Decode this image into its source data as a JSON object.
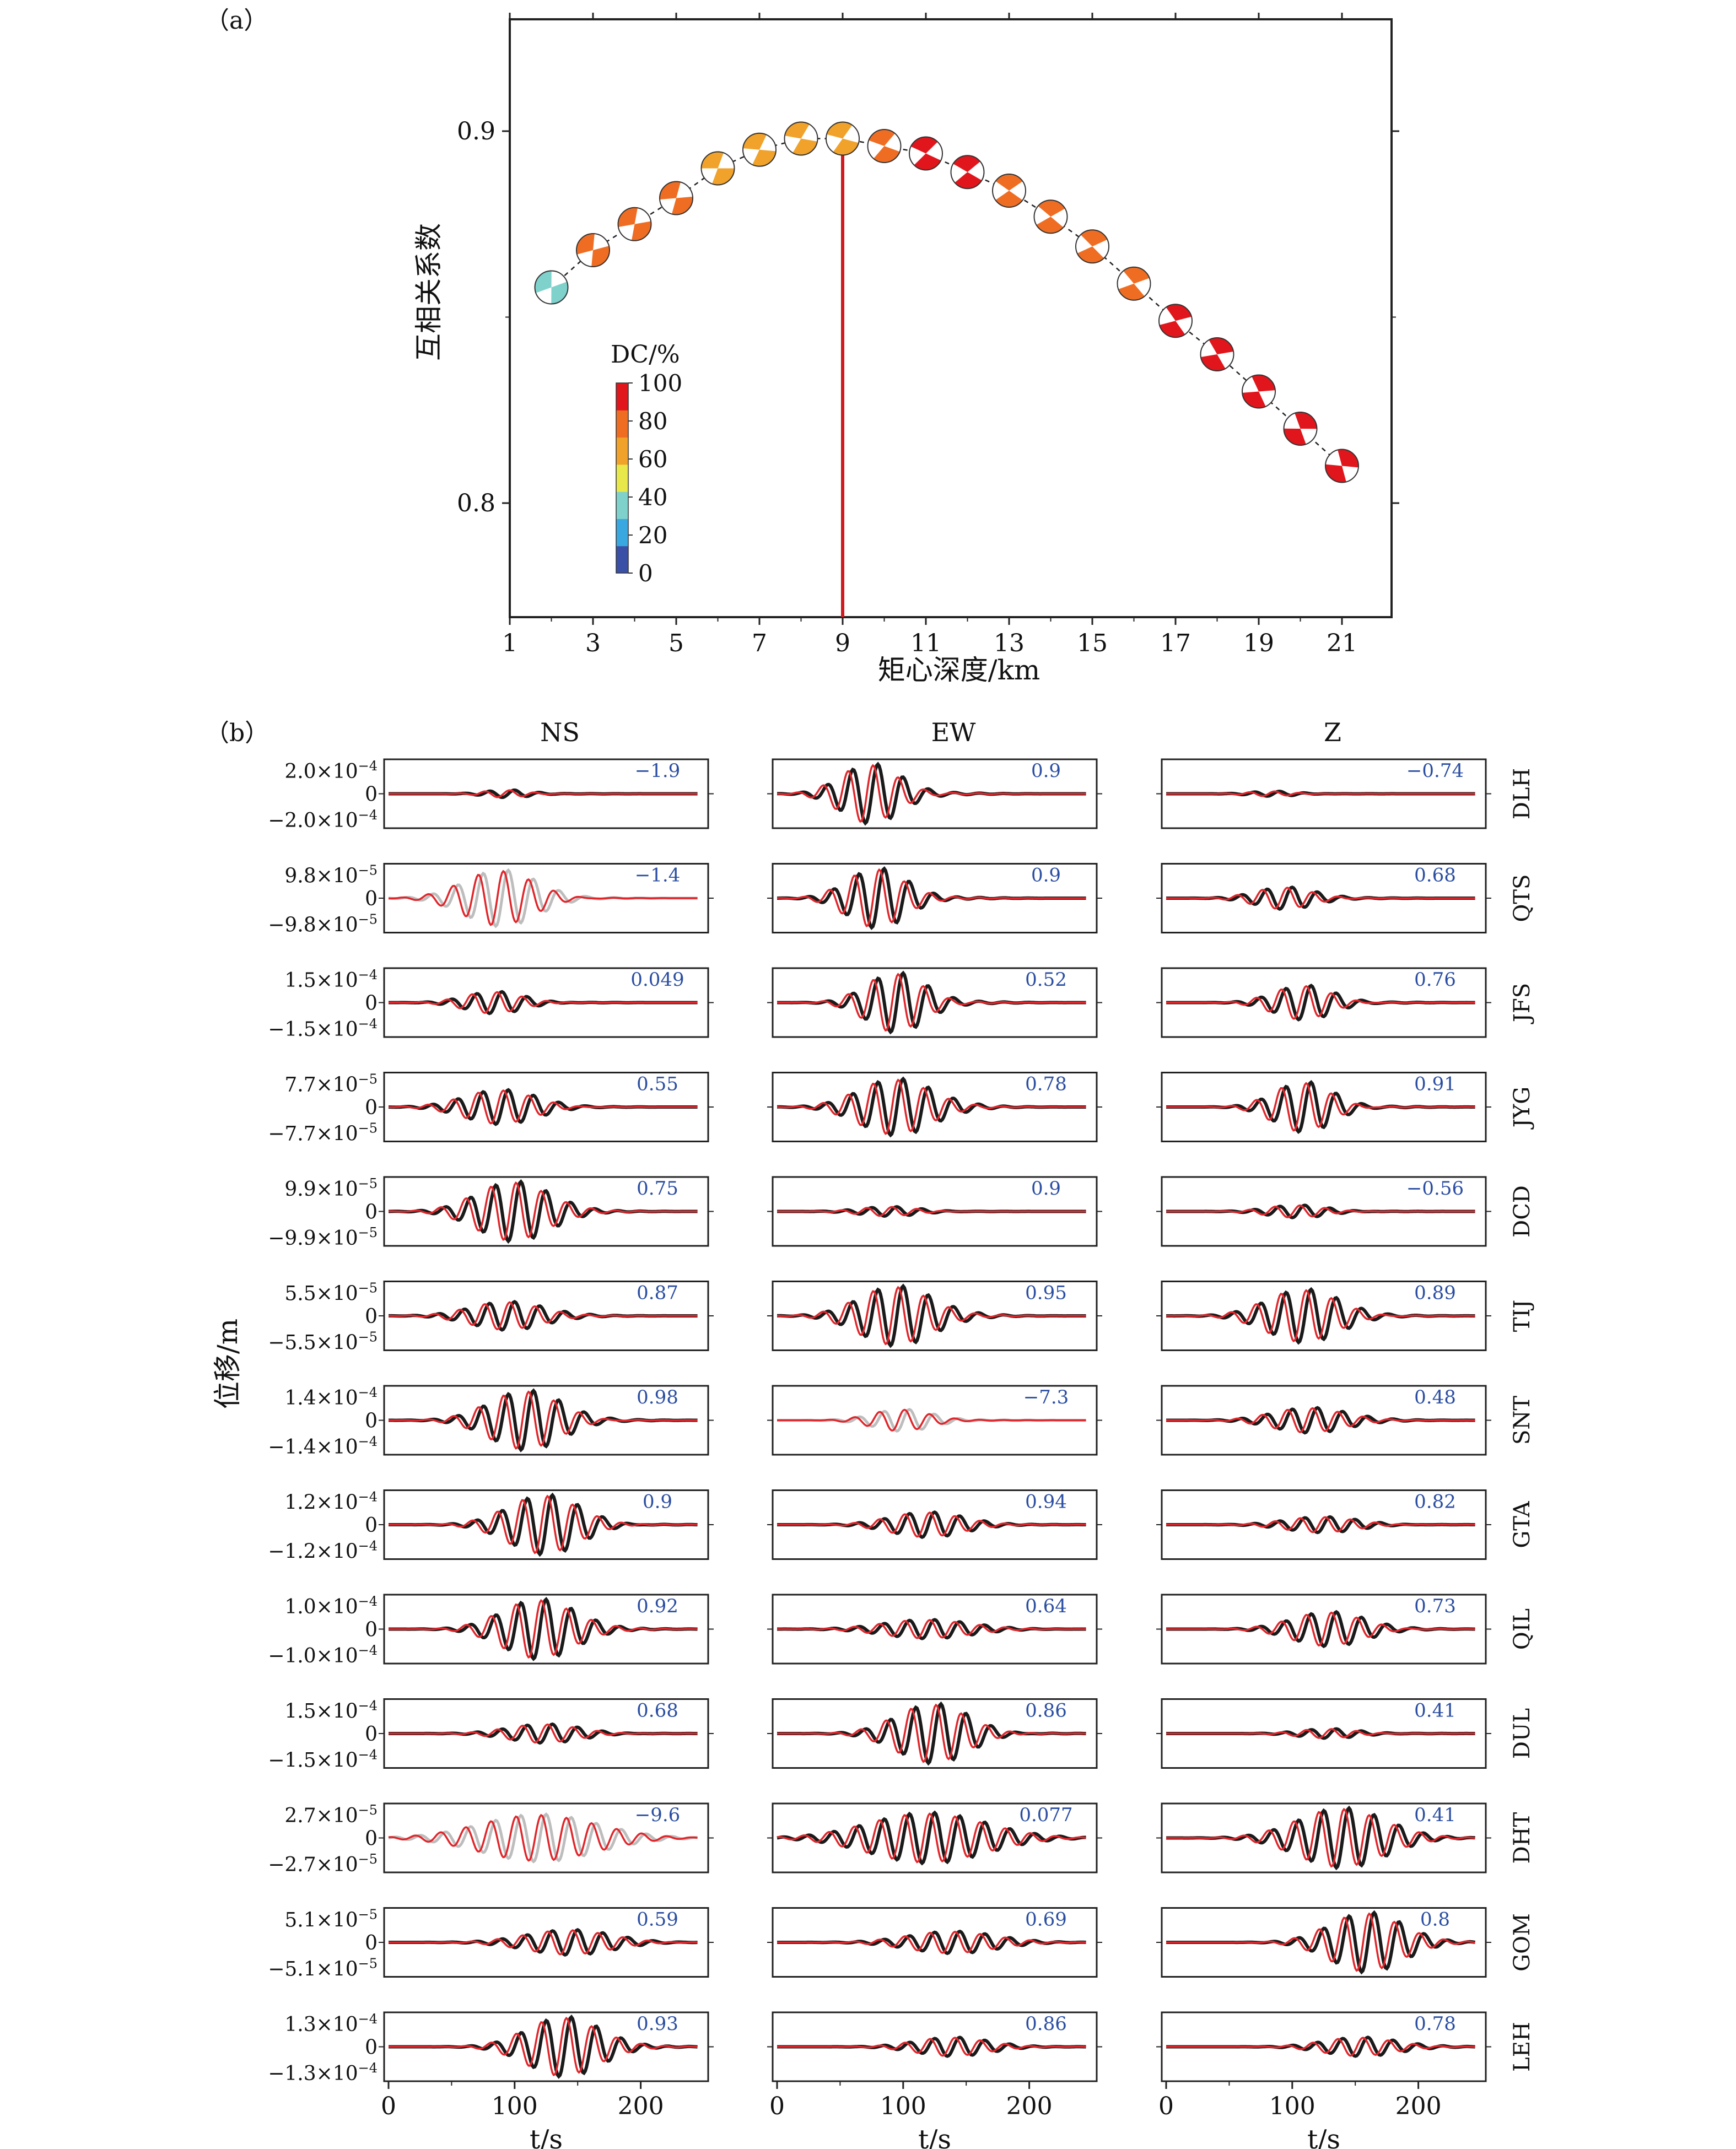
{
  "panel_a": {
    "panel_label": "（a）",
    "ylabel": "互相关系数",
    "xlabel": "矩心深度/km",
    "legend_title": "DC/%",
    "colorbar_ticks": [
      "100",
      "80",
      "60",
      "40",
      "20",
      "0"
    ],
    "colorbar_colors": [
      "#3a4fa6",
      "#3aa8e0",
      "#7fd1cc",
      "#e8e84a",
      "#f0a22a",
      "#ef6d23",
      "#e0161c"
    ],
    "best_depth_color": "#d01a1f"
  },
  "panel_b": {
    "panel_label": "（b）",
    "columns": [
      "NS",
      "EW",
      "Z"
    ],
    "ylabel": "位移/m",
    "xlabel": "t/s",
    "x_ticks": [
      "0",
      "100",
      "200"
    ],
    "observed_color": "#1a1a1a",
    "synthetic_color": "#e0262b",
    "unused_color": "#bdbdbd",
    "value_color": "#2b4ea2",
    "zero_label": "0"
  },
  "chart_data": [
    {
      "type": "scatter",
      "title": "",
      "xlabel": "矩心深度/km",
      "ylabel": "互相关系数",
      "xlim": [
        1,
        22
      ],
      "ylim": [
        0.77,
        0.93
      ],
      "x_ticks": [
        1,
        3,
        5,
        7,
        9,
        11,
        13,
        15,
        17,
        19,
        21
      ],
      "y_ticks": [
        0.8,
        0.9
      ],
      "best_depth": 9,
      "grid": false,
      "points": [
        {
          "depth": 2,
          "cc": 0.858,
          "dc": 40
        },
        {
          "depth": 3,
          "cc": 0.868,
          "dc": 70
        },
        {
          "depth": 4,
          "cc": 0.875,
          "dc": 72
        },
        {
          "depth": 5,
          "cc": 0.882,
          "dc": 72
        },
        {
          "depth": 6,
          "cc": 0.89,
          "dc": 66
        },
        {
          "depth": 7,
          "cc": 0.895,
          "dc": 64
        },
        {
          "depth": 8,
          "cc": 0.898,
          "dc": 62
        },
        {
          "depth": 9,
          "cc": 0.898,
          "dc": 62
        },
        {
          "depth": 10,
          "cc": 0.896,
          "dc": 72
        },
        {
          "depth": 11,
          "cc": 0.894,
          "dc": 88
        },
        {
          "depth": 12,
          "cc": 0.889,
          "dc": 90
        },
        {
          "depth": 13,
          "cc": 0.884,
          "dc": 78
        },
        {
          "depth": 14,
          "cc": 0.877,
          "dc": 78
        },
        {
          "depth": 15,
          "cc": 0.869,
          "dc": 76
        },
        {
          "depth": 16,
          "cc": 0.859,
          "dc": 80
        },
        {
          "depth": 17,
          "cc": 0.849,
          "dc": 95
        },
        {
          "depth": 18,
          "cc": 0.84,
          "dc": 95
        },
        {
          "depth": 19,
          "cc": 0.83,
          "dc": 96
        },
        {
          "depth": 20,
          "cc": 0.82,
          "dc": 96
        },
        {
          "depth": 21,
          "cc": 0.81,
          "dc": 96
        }
      ]
    },
    {
      "type": "line",
      "title": "",
      "xlabel": "t/s",
      "ylabel": "位移/m",
      "xlim": [
        0,
        250
      ],
      "x_ticks": [
        0,
        100,
        200
      ],
      "stations": [
        {
          "name": "DLH",
          "amp": "2.0×10",
          "exp": "−4",
          "NS": {
            "cc": "−1.9",
            "used": true,
            "t0": 95,
            "a": 0.12,
            "n": 3
          },
          "EW": {
            "cc": "0.9",
            "used": true,
            "t0": 75,
            "a": 0.95,
            "n": 4
          },
          "Z": {
            "cc": "−0.74",
            "used": true,
            "t0": 85,
            "a": 0.08,
            "n": 3
          }
        },
        {
          "name": "QTS",
          "amp": "9.8×10",
          "exp": "−5",
          "NS": {
            "cc": "−1.4",
            "used": false,
            "t0": 90,
            "a": 0.9,
            "n": 5
          },
          "EW": {
            "cc": "0.9",
            "used": true,
            "t0": 80,
            "a": 0.95,
            "n": 4
          },
          "Z": {
            "cc": "0.68",
            "used": true,
            "t0": 95,
            "a": 0.35,
            "n": 4
          }
        },
        {
          "name": "JFS",
          "amp": "1.5×10",
          "exp": "−4",
          "NS": {
            "cc": "0.049",
            "used": true,
            "t0": 85,
            "a": 0.35,
            "n": 4
          },
          "EW": {
            "cc": "0.52",
            "used": true,
            "t0": 95,
            "a": 0.95,
            "n": 4
          },
          "Z": {
            "cc": "0.76",
            "used": true,
            "t0": 110,
            "a": 0.55,
            "n": 4
          }
        },
        {
          "name": "JYG",
          "amp": "7.7×10",
          "exp": "−5",
          "NS": {
            "cc": "0.55",
            "used": true,
            "t0": 90,
            "a": 0.55,
            "n": 5
          },
          "EW": {
            "cc": "0.78",
            "used": true,
            "t0": 95,
            "a": 0.9,
            "n": 5
          },
          "Z": {
            "cc": "0.91",
            "used": true,
            "t0": 110,
            "a": 0.8,
            "n": 4
          }
        },
        {
          "name": "DCD",
          "amp": "9.9×10",
          "exp": "−5",
          "NS": {
            "cc": "0.75",
            "used": true,
            "t0": 100,
            "a": 0.95,
            "n": 5
          },
          "EW": {
            "cc": "0.9",
            "used": true,
            "t0": 90,
            "a": 0.15,
            "n": 4
          },
          "Z": {
            "cc": "−0.56",
            "used": true,
            "t0": 105,
            "a": 0.2,
            "n": 4
          }
        },
        {
          "name": "TIJ",
          "amp": "5.5×10",
          "exp": "−5",
          "NS": {
            "cc": "0.87",
            "used": true,
            "t0": 95,
            "a": 0.45,
            "n": 5
          },
          "EW": {
            "cc": "0.95",
            "used": true,
            "t0": 95,
            "a": 0.95,
            "n": 5
          },
          "Z": {
            "cc": "0.89",
            "used": true,
            "t0": 110,
            "a": 0.85,
            "n": 5
          }
        },
        {
          "name": "SNT",
          "amp": "1.4×10",
          "exp": "−4",
          "NS": {
            "cc": "0.98",
            "used": true,
            "t0": 110,
            "a": 0.95,
            "n": 5
          },
          "EW": {
            "cc": "−7.3",
            "used": false,
            "t0": 100,
            "a": 0.35,
            "n": 4
          },
          "Z": {
            "cc": "0.48",
            "used": true,
            "t0": 115,
            "a": 0.4,
            "n": 5
          }
        },
        {
          "name": "GTA",
          "amp": "1.2×10",
          "exp": "−4",
          "NS": {
            "cc": "0.9",
            "used": true,
            "t0": 125,
            "a": 0.95,
            "n": 5
          },
          "EW": {
            "cc": "0.94",
            "used": true,
            "t0": 120,
            "a": 0.4,
            "n": 5
          },
          "Z": {
            "cc": "0.82",
            "used": true,
            "t0": 125,
            "a": 0.25,
            "n": 5
          }
        },
        {
          "name": "QIL",
          "amp": "1.0×10",
          "exp": "−4",
          "NS": {
            "cc": "0.92",
            "used": true,
            "t0": 120,
            "a": 0.95,
            "n": 5
          },
          "EW": {
            "cc": "0.64",
            "used": true,
            "t0": 120,
            "a": 0.3,
            "n": 6
          },
          "Z": {
            "cc": "0.73",
            "used": true,
            "t0": 130,
            "a": 0.55,
            "n": 5
          }
        },
        {
          "name": "DUL",
          "amp": "1.5×10",
          "exp": "−4",
          "NS": {
            "cc": "0.68",
            "used": true,
            "t0": 125,
            "a": 0.3,
            "n": 5
          },
          "EW": {
            "cc": "0.86",
            "used": true,
            "t0": 125,
            "a": 0.95,
            "n": 5
          },
          "Z": {
            "cc": "0.41",
            "used": true,
            "t0": 130,
            "a": 0.15,
            "n": 4
          }
        },
        {
          "name": "DHT",
          "amp": "2.7×10",
          "exp": "−5",
          "NS": {
            "cc": "−9.6",
            "used": false,
            "t0": 120,
            "a": 0.75,
            "n": 8
          },
          "EW": {
            "cc": "0.077",
            "used": true,
            "t0": 120,
            "a": 0.8,
            "n": 8
          },
          "Z": {
            "cc": "0.41",
            "used": true,
            "t0": 140,
            "a": 0.95,
            "n": 6
          }
        },
        {
          "name": "GOM",
          "amp": "5.1×10",
          "exp": "−5",
          "NS": {
            "cc": "0.59",
            "used": true,
            "t0": 145,
            "a": 0.4,
            "n": 6
          },
          "EW": {
            "cc": "0.69",
            "used": true,
            "t0": 140,
            "a": 0.35,
            "n": 6
          },
          "Z": {
            "cc": "0.8",
            "used": true,
            "t0": 160,
            "a": 0.95,
            "n": 5
          }
        },
        {
          "name": "LEH",
          "amp": "1.3×10",
          "exp": "−4",
          "NS": {
            "cc": "0.93",
            "used": true,
            "t0": 140,
            "a": 0.95,
            "n": 5
          },
          "EW": {
            "cc": "0.86",
            "used": true,
            "t0": 140,
            "a": 0.3,
            "n": 5
          },
          "Z": {
            "cc": "0.78",
            "used": true,
            "t0": 155,
            "a": 0.3,
            "n": 5
          }
        }
      ]
    }
  ]
}
